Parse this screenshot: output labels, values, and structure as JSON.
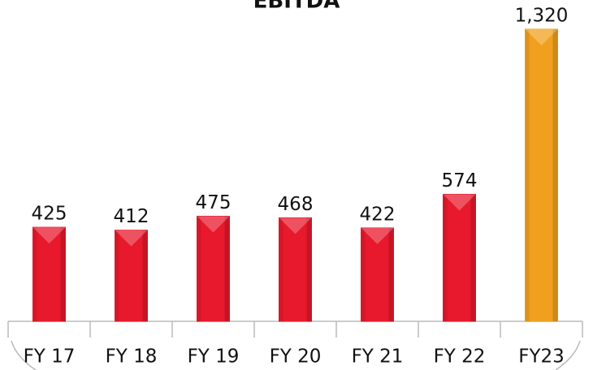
{
  "chart_data": {
    "type": "bar",
    "title": "EBITDA",
    "categories": [
      "FY 17",
      "FY 18",
      "FY 19",
      "FY 20",
      "FY 21",
      "FY 22",
      "FY23"
    ],
    "values": [
      425,
      412,
      475,
      468,
      422,
      574,
      1320
    ],
    "value_labels": [
      "425",
      "412",
      "475",
      "468",
      "422",
      "574",
      "1,320"
    ],
    "colors": [
      "#e8192c",
      "#e8192c",
      "#e8192c",
      "#e8192c",
      "#e8192c",
      "#e8192c",
      "#f0a01e"
    ]
  }
}
